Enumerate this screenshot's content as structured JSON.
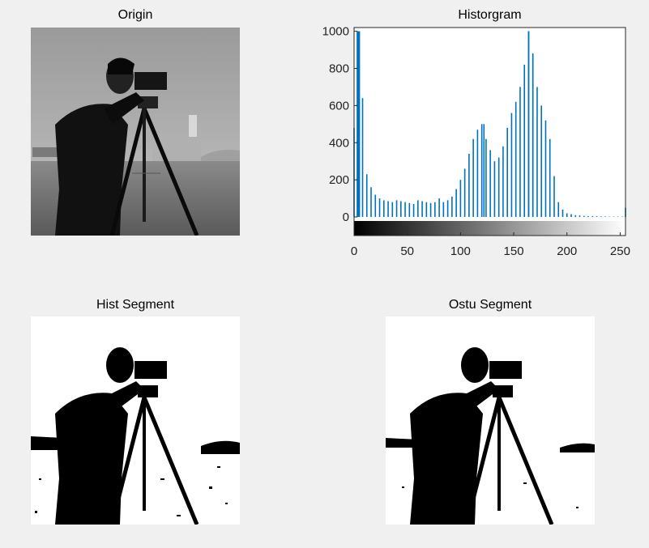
{
  "figure": {
    "subplots": [
      {
        "title": "Origin"
      },
      {
        "title": "Historgram"
      },
      {
        "title": "Hist Segment"
      },
      {
        "title": "Ostu Segment"
      }
    ]
  },
  "chart_data": {
    "type": "bar",
    "title": "Historgram",
    "xlabel": "",
    "ylabel": "",
    "xlim": [
      0,
      255
    ],
    "ylim": [
      -100,
      1020
    ],
    "xticks": [
      0,
      50,
      100,
      150,
      200,
      250
    ],
    "yticks": [
      0,
      200,
      400,
      600,
      800,
      1000
    ],
    "colorbar": "grayscale 0-255 below axis",
    "bar_color": "#0072bd",
    "peaks": [
      {
        "x": 3,
        "y": 1000
      },
      {
        "x": 5,
        "y": 1000
      },
      {
        "x": 122,
        "y": 500
      },
      {
        "x": 164,
        "y": 1000
      },
      {
        "x": 168,
        "y": 880
      }
    ],
    "x": [
      0,
      4,
      8,
      12,
      16,
      20,
      24,
      28,
      32,
      36,
      40,
      44,
      48,
      52,
      56,
      60,
      64,
      68,
      72,
      76,
      80,
      84,
      88,
      92,
      96,
      100,
      104,
      108,
      112,
      116,
      120,
      124,
      128,
      132,
      136,
      140,
      144,
      148,
      152,
      156,
      160,
      164,
      168,
      172,
      176,
      180,
      184,
      188,
      192,
      196,
      200,
      204,
      208,
      212,
      216,
      220,
      224,
      228,
      232,
      236,
      240,
      244,
      248,
      252,
      255
    ],
    "values": [
      480,
      1000,
      640,
      230,
      160,
      120,
      100,
      90,
      85,
      80,
      90,
      85,
      80,
      75,
      70,
      90,
      85,
      80,
      75,
      80,
      100,
      80,
      90,
      110,
      150,
      200,
      260,
      340,
      420,
      470,
      500,
      420,
      360,
      300,
      320,
      380,
      480,
      560,
      620,
      700,
      820,
      1000,
      880,
      700,
      600,
      520,
      420,
      220,
      80,
      40,
      20,
      15,
      10,
      8,
      6,
      5,
      5,
      4,
      3,
      3,
      2,
      2,
      2,
      2,
      50
    ]
  }
}
